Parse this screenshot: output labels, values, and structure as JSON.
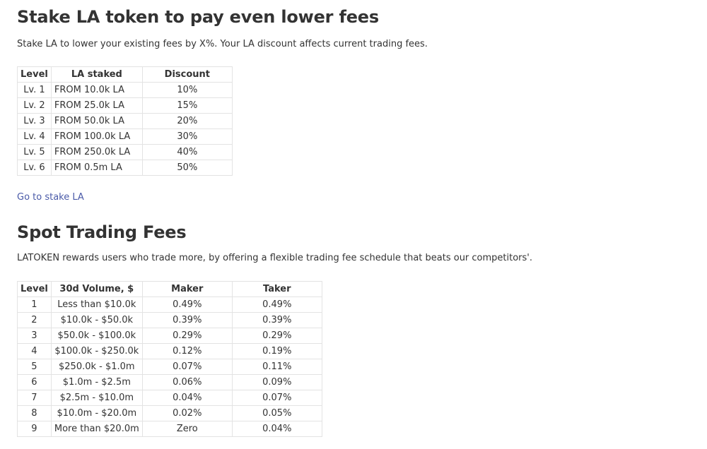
{
  "stake_section": {
    "title": "Stake LA token to pay even lower fees",
    "description": "Stake LA to lower your existing fees by X%. Your LA discount affects current trading fees.",
    "table": {
      "headers": [
        "Level",
        "LA staked",
        "Discount"
      ],
      "rows": [
        [
          "Lv. 1",
          "FROM 10.0k LA",
          "10%"
        ],
        [
          "Lv. 2",
          "FROM 25.0k LA",
          "15%"
        ],
        [
          "Lv. 3",
          "FROM 50.0k LA",
          "20%"
        ],
        [
          "Lv. 4",
          "FROM 100.0k LA",
          "30%"
        ],
        [
          "Lv. 5",
          "FROM 250.0k LA",
          "40%"
        ],
        [
          "Lv. 6",
          "FROM 0.5m LA",
          "50%"
        ]
      ]
    },
    "link_label": "Go to stake LA"
  },
  "spot_section": {
    "title": "Spot Trading Fees",
    "description": "LATOKEN rewards users who trade more, by offering a flexible trading fee schedule that beats our competitors'.",
    "table": {
      "headers": [
        "Level",
        "30d Volume, $",
        "Maker",
        "Taker"
      ],
      "rows": [
        [
          "1",
          "Less than $10.0k",
          "0.49%",
          "0.49%"
        ],
        [
          "2",
          "$10.0k - $50.0k",
          "0.39%",
          "0.39%"
        ],
        [
          "3",
          "$50.0k - $100.0k",
          "0.29%",
          "0.29%"
        ],
        [
          "4",
          "$100.0k - $250.0k",
          "0.12%",
          "0.19%"
        ],
        [
          "5",
          "$250.0k - $1.0m",
          "0.07%",
          "0.11%"
        ],
        [
          "6",
          "$1.0m - $2.5m",
          "0.06%",
          "0.09%"
        ],
        [
          "7",
          "$2.5m - $10.0m",
          "0.04%",
          "0.07%"
        ],
        [
          "8",
          "$10.0m - $20.0m",
          "0.02%",
          "0.05%"
        ],
        [
          "9",
          "More than $20.0m",
          "Zero",
          "0.04%"
        ]
      ]
    }
  },
  "colors": {
    "text": "#333333",
    "link": "#4a5aa8",
    "table_border": "#e3e3e3"
  }
}
